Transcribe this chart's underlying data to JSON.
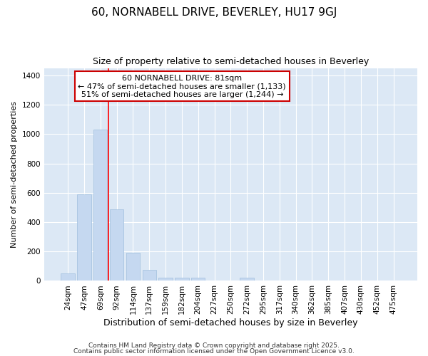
{
  "title1": "60, NORNABELL DRIVE, BEVERLEY, HU17 9GJ",
  "title2": "Size of property relative to semi-detached houses in Beverley",
  "xlabel": "Distribution of semi-detached houses by size in Beverley",
  "ylabel": "Number of semi-detached properties",
  "categories": [
    "24sqm",
    "47sqm",
    "69sqm",
    "92sqm",
    "114sqm",
    "137sqm",
    "159sqm",
    "182sqm",
    "204sqm",
    "227sqm",
    "250sqm",
    "272sqm",
    "295sqm",
    "317sqm",
    "340sqm",
    "362sqm",
    "385sqm",
    "407sqm",
    "430sqm",
    "452sqm",
    "475sqm"
  ],
  "values": [
    50,
    590,
    1030,
    485,
    190,
    75,
    20,
    20,
    20,
    0,
    0,
    20,
    0,
    0,
    0,
    0,
    0,
    0,
    0,
    0,
    0
  ],
  "bar_color": "#c5d8f0",
  "bar_edge_color": "#a0bedd",
  "red_line_x": 2.5,
  "red_line_label": "60 NORNABELL DRIVE: 81sqm",
  "annotation_line1": "← 47% of semi-detached houses are smaller (1,133)",
  "annotation_line2": "51% of semi-detached houses are larger (1,244) →",
  "annotation_box_color": "#ffffff",
  "annotation_box_edge": "#cc0000",
  "ylim": [
    0,
    1450
  ],
  "yticks": [
    0,
    200,
    400,
    600,
    800,
    1000,
    1200,
    1400
  ],
  "background_color": "#dce8f5",
  "footer1": "Contains HM Land Registry data © Crown copyright and database right 2025.",
  "footer2": "Contains public sector information licensed under the Open Government Licence v3.0.",
  "title1_fontsize": 11,
  "title2_fontsize": 9,
  "xlabel_fontsize": 9,
  "ylabel_fontsize": 8,
  "tick_fontsize": 7.5,
  "annotation_fontsize": 8,
  "footer_fontsize": 6.5
}
